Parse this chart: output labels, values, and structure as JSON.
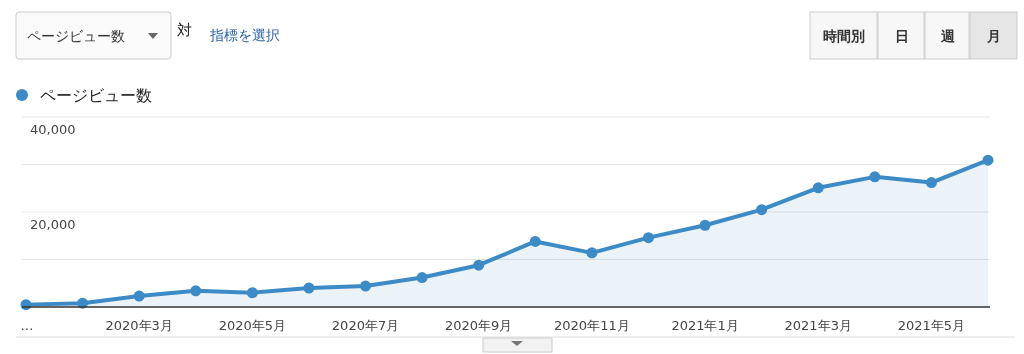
{
  "chart_data": {
    "type": "area",
    "categories": [
      "…",
      null,
      "2020年3月",
      null,
      "2020年5月",
      null,
      "2020年7月",
      null,
      "2020年9月",
      null,
      "2020年11月",
      null,
      "2021年1月",
      null,
      "2021年3月",
      null,
      "2021年5月",
      null
    ],
    "series": [
      {
        "name": "ページビュー数",
        "color": "#3d8bc6",
        "values": [
          500,
          800,
          2300,
          3400,
          3000,
          4000,
          4400,
          6200,
          8800,
          13800,
          11400,
          14600,
          17200,
          20500,
          25100,
          27400,
          26200,
          30900
        ]
      }
    ],
    "ylim": [
      0,
      40000
    ],
    "yticks": [
      {
        "value": 10000,
        "label": null
      },
      {
        "value": 20000,
        "label": "20,000"
      },
      {
        "value": 30000,
        "label": null
      },
      {
        "value": 40000,
        "label": "40,000"
      }
    ],
    "grid": "y",
    "legend": "top left",
    "marker": "circle",
    "annotations": [
      "ページビュー数",
      "対",
      "指標を選択",
      "時間別",
      "日",
      "週",
      "月"
    ]
  }
}
